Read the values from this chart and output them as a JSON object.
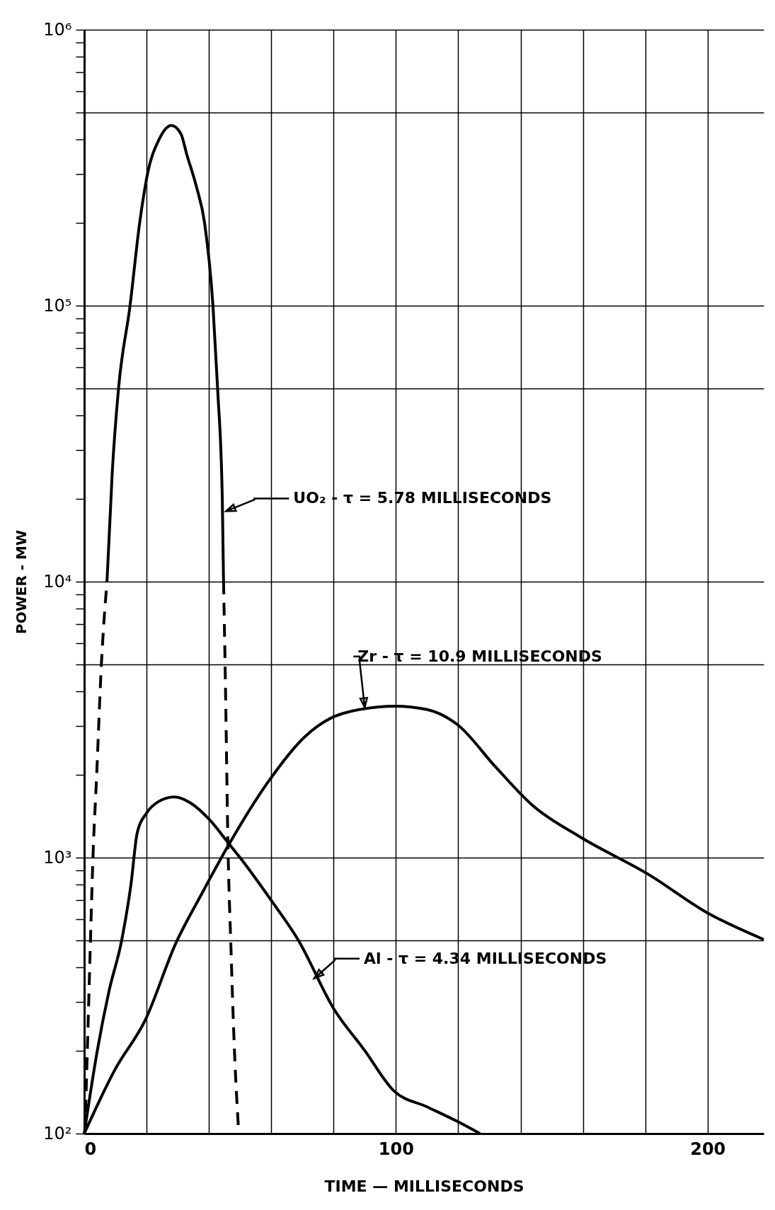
{
  "chart_data": {
    "type": "line",
    "xlabel": "TIME — MILLISECONDS",
    "ylabel": "POWER - MW",
    "log": "y",
    "grid": true,
    "xlim": [
      0,
      218
    ],
    "xticks": [
      0,
      {
        "value": 20,
        "label": null
      },
      {
        "value": 40,
        "label": null
      },
      {
        "value": 60,
        "label": null
      },
      {
        "value": 80,
        "label": null
      },
      100,
      {
        "value": 120,
        "label": null
      },
      {
        "value": 140,
        "label": null
      },
      {
        "value": 160,
        "label": null
      },
      {
        "value": 180,
        "label": null
      },
      200
    ],
    "ylim": [
      100,
      1000000
    ],
    "yticks": [
      {
        "value": 100,
        "label": "10²"
      },
      {
        "value": 200,
        "label": null
      },
      {
        "value": 300,
        "label": null
      },
      {
        "value": 400,
        "label": null
      },
      {
        "value": 500,
        "label": null
      },
      {
        "value": 600,
        "label": null
      },
      {
        "value": 700,
        "label": null
      },
      {
        "value": 800,
        "label": null
      },
      {
        "value": 900,
        "label": null
      },
      {
        "value": 1000,
        "label": "10³"
      },
      {
        "value": 2000,
        "label": null
      },
      {
        "value": 3000,
        "label": null
      },
      {
        "value": 4000,
        "label": null
      },
      {
        "value": 5000,
        "label": null
      },
      {
        "value": 6000,
        "label": null
      },
      {
        "value": 7000,
        "label": null
      },
      {
        "value": 8000,
        "label": null
      },
      {
        "value": 9000,
        "label": null
      },
      {
        "value": 10000,
        "label": "10⁴"
      },
      {
        "value": 20000,
        "label": null
      },
      {
        "value": 30000,
        "label": null
      },
      {
        "value": 40000,
        "label": null
      },
      {
        "value": 50000,
        "label": null
      },
      {
        "value": 60000,
        "label": null
      },
      {
        "value": 70000,
        "label": null
      },
      {
        "value": 80000,
        "label": null
      },
      {
        "value": 90000,
        "label": null
      },
      {
        "value": 100000,
        "label": "10⁵"
      },
      {
        "value": 200000,
        "label": null
      },
      {
        "value": 300000,
        "label": null
      },
      {
        "value": 400000,
        "label": null
      },
      {
        "value": 500000,
        "label": null
      },
      {
        "value": 600000,
        "label": null
      },
      {
        "value": 700000,
        "label": null
      },
      {
        "value": 800000,
        "label": null
      },
      {
        "value": 900000,
        "label": null
      },
      {
        "value": 1000000,
        "label": "10⁶"
      }
    ],
    "series": [
      {
        "color": "#000000",
        "line_style": "solid",
        "x": [
          7.3,
          9,
          11,
          14.7,
          17.8,
          20.3,
          24,
          28,
          31,
          33,
          36,
          38.6,
          41.3,
          42.8,
          44.3,
          44.7
        ],
        "values": [
          10000,
          25000,
          50000,
          100000,
          200000,
          300000,
          400000,
          450000,
          420000,
          350000,
          270000,
          200000,
          100000,
          50000,
          20000,
          10000
        ]
      },
      {
        "color": "#000000",
        "line_style": "dashed",
        "x": [
          0.2,
          1,
          2,
          2.8,
          4,
          5.5,
          7.3
        ],
        "values": [
          100,
          200,
          500,
          1000,
          2000,
          5000,
          10000
        ]
      },
      {
        "color": "#000000",
        "line_style": "dashed",
        "x": [
          44.7,
          45.2,
          46.2,
          47,
          48.2,
          49.6
        ],
        "values": [
          10000,
          5000,
          1000,
          500,
          200,
          100
        ]
      },
      {
        "color": "#000000",
        "line_style": "solid",
        "x": [
          0,
          4.2,
          8,
          12,
          15,
          17,
          20,
          24,
          28.9,
          34,
          40,
          46.5,
          50,
          60,
          68.8,
          80,
          90,
          99.3,
          110,
          119.5,
          127
        ],
        "values": [
          100,
          200,
          330,
          500,
          800,
          1230,
          1450,
          1600,
          1660,
          1580,
          1380,
          1120,
          1000,
          700,
          500,
          284,
          200,
          143,
          125,
          111,
          100
        ]
      },
      {
        "color": "#000000",
        "line_style": "solid",
        "x": [
          0,
          9.8,
          19.6,
          29.3,
          38,
          46.5,
          58.7,
          70.9,
          83,
          99.8,
          110,
          119.8,
          132,
          144,
          159,
          181,
          200,
          218
        ],
        "values": [
          100,
          170,
          258,
          487,
          750,
          1120,
          1860,
          2750,
          3330,
          3540,
          3440,
          3030,
          2130,
          1540,
          1190,
          870,
          630,
          505
        ]
      }
    ],
    "annotations": [
      {
        "text": "UO₂ - τ = 5.78 MILLISECONDS",
        "x": 45.5,
        "y": 18000
      },
      {
        "text": "Zr - τ = 10.9 MILLISECONDS",
        "x": 90,
        "y": 3500
      },
      {
        "text": "Al - τ = 4.34 MILLISECONDS",
        "x": 73.8,
        "y": 365
      }
    ]
  }
}
